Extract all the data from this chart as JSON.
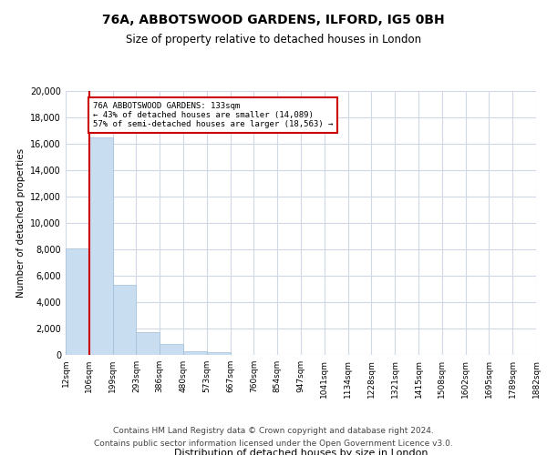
{
  "title": "76A, ABBOTSWOOD GARDENS, ILFORD, IG5 0BH",
  "subtitle": "Size of property relative to detached houses in London",
  "xlabel": "Distribution of detached houses by size in London",
  "ylabel": "Number of detached properties",
  "bin_labels": [
    "12sqm",
    "106sqm",
    "199sqm",
    "293sqm",
    "386sqm",
    "480sqm",
    "573sqm",
    "667sqm",
    "760sqm",
    "854sqm",
    "947sqm",
    "1041sqm",
    "1134sqm",
    "1228sqm",
    "1321sqm",
    "1415sqm",
    "1508sqm",
    "1602sqm",
    "1695sqm",
    "1789sqm",
    "1882sqm"
  ],
  "bar_heights": [
    8100,
    16500,
    5300,
    1750,
    800,
    300,
    200,
    0,
    0,
    0,
    0,
    0,
    0,
    0,
    0,
    0,
    0,
    0,
    0,
    0
  ],
  "bar_color": "#c9ddf0",
  "bar_edge_color": "#a0bfd8",
  "property_line_x": 1,
  "property_value": 133,
  "annotation_title": "76A ABBOTSWOOD GARDENS: 133sqm",
  "annotation_line1": "← 43% of detached houses are smaller (14,089)",
  "annotation_line2": "57% of semi-detached houses are larger (18,563) →",
  "annotation_box_color": "#ffffff",
  "annotation_box_edge": "#cc0000",
  "line_color": "#cc0000",
  "ylim": [
    0,
    20000
  ],
  "yticks": [
    0,
    2000,
    4000,
    6000,
    8000,
    10000,
    12000,
    14000,
    16000,
    18000,
    20000
  ],
  "footer1": "Contains HM Land Registry data © Crown copyright and database right 2024.",
  "footer2": "Contains public sector information licensed under the Open Government Licence v3.0.",
  "background_color": "#ffffff",
  "grid_color": "#d0d8e8"
}
